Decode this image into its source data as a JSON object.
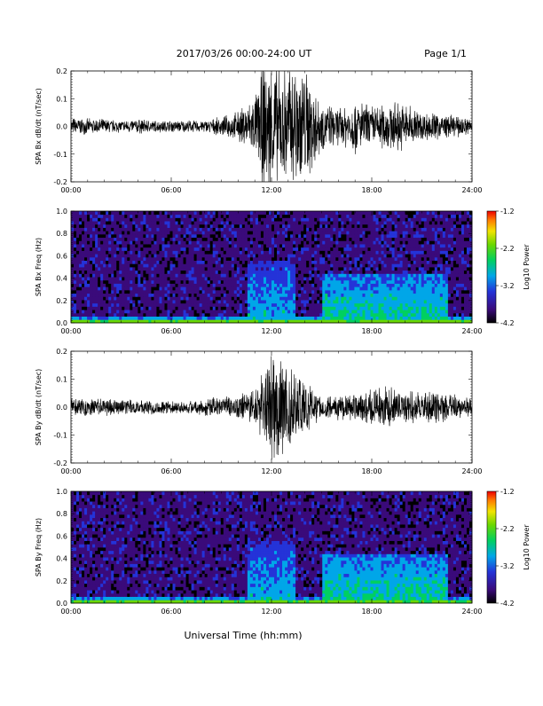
{
  "header": {
    "title": "2017/03/26  00:00-24:00 UT",
    "page": "Page 1/1"
  },
  "footer": {
    "xlabel": "Universal Time (hh:mm)"
  },
  "chart_data": [
    {
      "type": "line",
      "ylabel": "SPA Bx dB/dt (nT/sec)",
      "xlim": [
        "00:00",
        "24:00"
      ],
      "x_ticks": [
        "00:00",
        "06:00",
        "12:00",
        "18:00",
        "24:00"
      ],
      "ylim": [
        -0.2,
        0.2
      ],
      "y_ticks": [
        "-0.2",
        "-0.1",
        "0.0",
        "0.1",
        "0.2"
      ],
      "series": [
        {
          "x_hours": [
            0,
            1,
            2,
            3,
            4,
            5,
            6,
            7,
            8,
            9,
            10,
            11,
            11.5,
            12,
            12.5,
            13,
            13.5,
            14,
            14.5,
            15,
            16,
            17,
            18,
            19,
            20,
            21,
            22,
            23,
            24
          ],
          "amplitude": [
            0.03,
            0.025,
            0.025,
            0.02,
            0.025,
            0.02,
            0.02,
            0.02,
            0.02,
            0.03,
            0.05,
            0.1,
            0.2,
            0.22,
            0.2,
            0.2,
            0.22,
            0.2,
            0.15,
            0.08,
            0.06,
            0.09,
            0.07,
            0.08,
            0.08,
            0.05,
            0.045,
            0.035,
            0.03
          ]
        }
      ]
    },
    {
      "type": "heatmap",
      "ylabel": "SPA Bx Freq (Hz)",
      "xlim": [
        "00:00",
        "24:00"
      ],
      "x_ticks": [
        "00:00",
        "06:00",
        "12:00",
        "18:00",
        "24:00"
      ],
      "ylim": [
        0.0,
        1.0
      ],
      "y_ticks": [
        "0.0",
        "0.2",
        "0.4",
        "0.6",
        "0.8",
        "1.0"
      ],
      "colorbar": {
        "label": "Log10 Power",
        "range": [
          -4.2,
          -1.2
        ],
        "ticks": [
          "-1.2",
          "-2.2",
          "-3.2",
          "-4.2"
        ]
      },
      "bands": [
        {
          "t0": 10.5,
          "t1": 13.5,
          "f_top": 0.55,
          "level": -3.2
        },
        {
          "t0": 15.0,
          "t1": 22.5,
          "f_top": 0.45,
          "level": -3.0
        },
        {
          "t0": 0.0,
          "t1": 24.0,
          "f_top": 0.05,
          "level": -2.9
        }
      ]
    },
    {
      "type": "line",
      "ylabel": "SPA By dB/dt (nT/sec)",
      "xlim": [
        "00:00",
        "24:00"
      ],
      "x_ticks": [
        "00:00",
        "06:00",
        "12:00",
        "18:00",
        "24:00"
      ],
      "ylim": [
        -0.2,
        0.2
      ],
      "y_ticks": [
        "-0.2",
        "-0.1",
        "0.0",
        "0.1",
        "0.2"
      ],
      "series": [
        {
          "x_hours": [
            0,
            1,
            2,
            3,
            4,
            5,
            6,
            7,
            8,
            9,
            10,
            11,
            11.5,
            12,
            12.5,
            13,
            13.5,
            14,
            14.5,
            15,
            16,
            17,
            18,
            19,
            20,
            21,
            22,
            23,
            24
          ],
          "amplitude": [
            0.03,
            0.03,
            0.03,
            0.025,
            0.025,
            0.025,
            0.02,
            0.02,
            0.03,
            0.03,
            0.04,
            0.06,
            0.12,
            0.2,
            0.2,
            0.16,
            0.12,
            0.1,
            0.06,
            0.04,
            0.04,
            0.05,
            0.06,
            0.07,
            0.05,
            0.05,
            0.05,
            0.04,
            0.03
          ]
        }
      ]
    },
    {
      "type": "heatmap",
      "ylabel": "SPA By Freq (Hz)",
      "xlim": [
        "00:00",
        "24:00"
      ],
      "x_ticks": [
        "00:00",
        "06:00",
        "12:00",
        "18:00",
        "24:00"
      ],
      "ylim": [
        0.0,
        1.0
      ],
      "y_ticks": [
        "0.0",
        "0.2",
        "0.4",
        "0.6",
        "0.8",
        "1.0"
      ],
      "colorbar": {
        "label": "Log10 Power",
        "range": [
          -4.2,
          -1.2
        ],
        "ticks": [
          "-1.2",
          "-2.2",
          "-3.2",
          "-4.2"
        ]
      },
      "bands": [
        {
          "t0": 10.5,
          "t1": 13.5,
          "f_top": 0.55,
          "level": -3.2
        },
        {
          "t0": 15.0,
          "t1": 22.5,
          "f_top": 0.45,
          "level": -3.0
        },
        {
          "t0": 0.0,
          "t1": 24.0,
          "f_top": 0.05,
          "level": -2.9
        }
      ]
    }
  ]
}
